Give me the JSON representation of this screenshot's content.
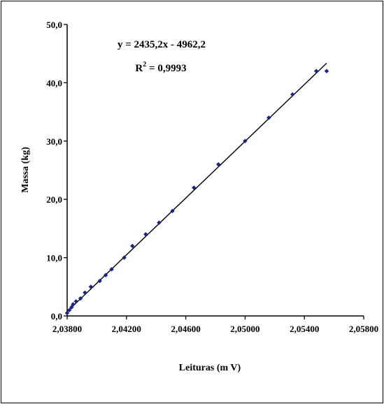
{
  "chart_data": {
    "type": "scatter",
    "title": "",
    "xlabel": "Leituras (m V)",
    "ylabel": "Massa (kg)",
    "xlim": [
      2.038,
      2.058
    ],
    "ylim": [
      0,
      50
    ],
    "x_ticks": [
      "2,03800",
      "2,04200",
      "2,04600",
      "2,05000",
      "2,05400",
      "2,05800"
    ],
    "y_ticks": [
      "0,0",
      "10,0",
      "20,0",
      "30,0",
      "40,0",
      "50,0"
    ],
    "grid": false,
    "legend": false,
    "marker_color": "#1a237e",
    "line_color": "#000000",
    "series": [
      {
        "x": [
          2.038,
          2.03815,
          2.0383,
          2.0384,
          2.0386,
          2.0389,
          2.0392,
          2.0396,
          2.0402,
          2.0406,
          2.041,
          2.04185,
          2.0424,
          2.0433,
          2.0442,
          2.0451,
          2.04655,
          2.0482,
          2.05,
          2.0516,
          2.0532,
          2.0548,
          2.0555
        ],
        "y": [
          0.5,
          1.0,
          1.5,
          2.0,
          2.5,
          3.0,
          4.0,
          5.0,
          6.0,
          7.0,
          8.0,
          10.0,
          12.0,
          14.0,
          16.0,
          18.0,
          22.0,
          26.0,
          30.0,
          34.0,
          38.0,
          42.0,
          42.0
        ]
      }
    ],
    "trendline": {
      "slope": 2435.2,
      "intercept": -4962.2,
      "x_range": [
        2.0379,
        2.0555
      ],
      "equation_text": "y = 2435,2x - 4962,2",
      "r2_label": "R",
      "r2_superscript": "2",
      "r2_value": " = 0,9993"
    }
  }
}
